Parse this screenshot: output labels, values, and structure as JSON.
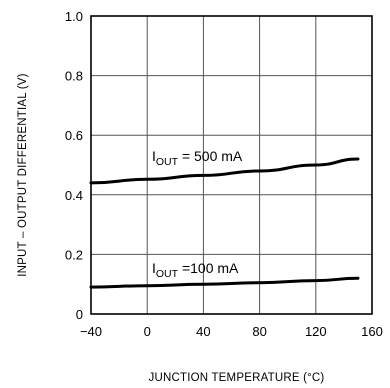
{
  "chart_data": {
    "type": "line",
    "xlabel": "JUNCTION TEMPERATURE (°C)",
    "ylabel": "INPUT – OUTPUT DIFFERENTIAL (V)",
    "xlim": [
      -40,
      160
    ],
    "ylim": [
      0,
      1.0
    ],
    "x_ticks": [
      "−40",
      "0",
      "40",
      "80",
      "120",
      "160"
    ],
    "y_ticks": [
      "0",
      "0.2",
      "0.4",
      "0.6",
      "0.8",
      "1.0"
    ],
    "grid": true,
    "series": [
      {
        "name": "I_OUT = 500 mA",
        "label_main": "I",
        "label_sub": "OUT",
        "label_rest": " = 500 mA",
        "x": [
          -40,
          0,
          40,
          80,
          120,
          150
        ],
        "values": [
          0.44,
          0.452,
          0.465,
          0.48,
          0.5,
          0.52
        ]
      },
      {
        "name": "I_OUT = 100 mA",
        "label_main": "I",
        "label_sub": "OUT",
        "label_rest": " =100 mA",
        "x": [
          -40,
          0,
          40,
          80,
          120,
          150
        ],
        "values": [
          0.09,
          0.095,
          0.1,
          0.105,
          0.112,
          0.12
        ]
      }
    ]
  }
}
